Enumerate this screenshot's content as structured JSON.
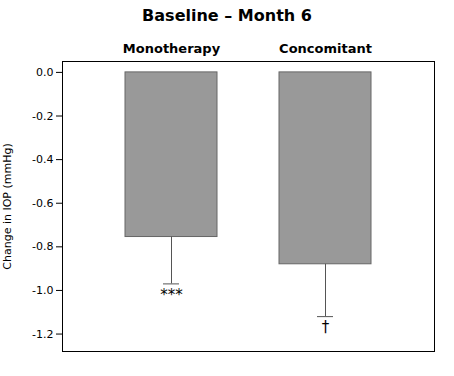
{
  "chart_data": {
    "type": "bar",
    "title": "Baseline – Month 6",
    "categories": [
      "Monotherapy",
      "Concomitant"
    ],
    "values": [
      -0.755,
      -0.88
    ],
    "errors_below": [
      0.215,
      0.24
    ],
    "annotations": [
      "***",
      "†"
    ],
    "color": "#999999",
    "ylabel": "Change in IOP (mmHg)",
    "ylim": [
      -1.28,
      0.05
    ],
    "yticks": [
      {
        "value": 0,
        "label": "0.0"
      },
      -0.2,
      -0.4,
      -0.6,
      -0.8,
      {
        "value": -1,
        "label": "-1.0"
      },
      -1.2
    ]
  }
}
